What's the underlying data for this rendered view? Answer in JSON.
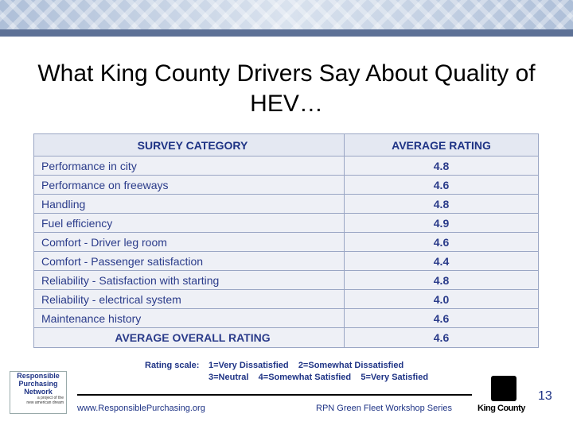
{
  "header": {
    "title": "What King County Drivers Say About Quality of HEV…"
  },
  "table": {
    "columns": [
      "SURVEY  CATEGORY",
      "AVERAGE RATING"
    ],
    "rows": [
      [
        "Performance in city",
        "4.8"
      ],
      [
        "Performance on freeways",
        "4.6"
      ],
      [
        "Handling",
        "4.8"
      ],
      [
        "Fuel efficiency",
        "4.9"
      ],
      [
        "Comfort - Driver leg room",
        "4.6"
      ],
      [
        "Comfort - Passenger satisfaction",
        "4.4"
      ],
      [
        "Reliability - Satisfaction with starting",
        "4.8"
      ],
      [
        "Reliability - electrical system",
        "4.0"
      ],
      [
        "Maintenance history",
        "4.6"
      ]
    ],
    "total": [
      "AVERAGE OVERALL RATING",
      "4.6"
    ]
  },
  "rating_scale": {
    "label": "Rating scale:",
    "lines": [
      "1=Very Dissatisfied    2=Somewhat Dissatisfied",
      "3=Neutral    4=Somewhat Satisfied    5=Very Satisfied"
    ]
  },
  "footer": {
    "url": "www.ResponsiblePurchasing.org",
    "series": "RPN Green Fleet Workshop Series",
    "slide_number": "13"
  },
  "logos": {
    "rpn": [
      "Responsible",
      "Purchasing",
      "Network"
    ],
    "rpn_tagline": [
      "a project of the",
      "new american dream"
    ],
    "king_county": "King County"
  }
}
